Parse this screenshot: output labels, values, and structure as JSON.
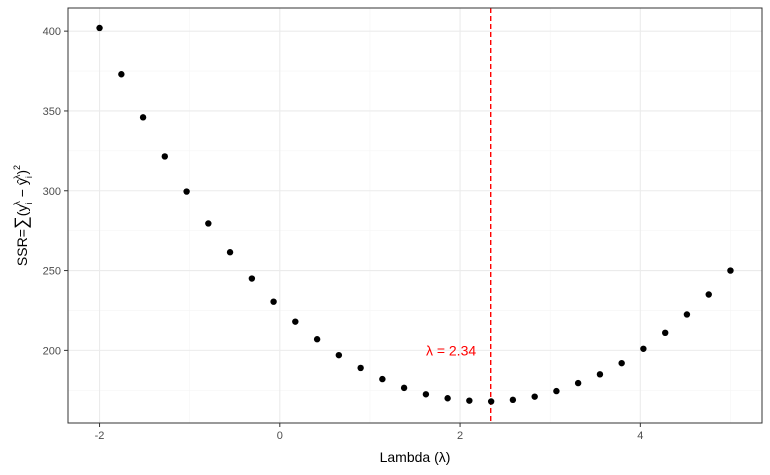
{
  "chart_data": {
    "type": "scatter",
    "xlabel": "Lambda (λ)",
    "ylabel_parts": {
      "prefix": "SSR=",
      "sigma": "∑",
      "open": "(",
      "y": "y",
      "i_sub": "i",
      "lambda_sup": "λ",
      "minus": " − ",
      "yhat": "ŷ",
      "close": ")",
      "square_sup": "2"
    },
    "xlim": [
      -2.35,
      5.35
    ],
    "ylim": [
      154.5,
      414.5
    ],
    "x_ticks": [
      -2,
      0,
      2,
      4
    ],
    "x_tick_labels": [
      "-2",
      "0",
      "2",
      "4"
    ],
    "y_ticks": [
      200,
      250,
      300,
      350,
      400
    ],
    "y_tick_labels": [
      "200",
      "250",
      "300",
      "350",
      "400"
    ],
    "grid": true,
    "points": [
      {
        "x": -2.0,
        "y": 402.0
      },
      {
        "x": -1.758,
        "y": 373.0
      },
      {
        "x": -1.517,
        "y": 346.0
      },
      {
        "x": -1.276,
        "y": 321.5
      },
      {
        "x": -1.034,
        "y": 299.5
      },
      {
        "x": -0.793,
        "y": 279.5
      },
      {
        "x": -0.552,
        "y": 261.5
      },
      {
        "x": -0.31,
        "y": 245.0
      },
      {
        "x": -0.069,
        "y": 230.5
      },
      {
        "x": 0.172,
        "y": 218.0
      },
      {
        "x": 0.414,
        "y": 207.0
      },
      {
        "x": 0.655,
        "y": 197.0
      },
      {
        "x": 0.897,
        "y": 189.0
      },
      {
        "x": 1.138,
        "y": 182.0
      },
      {
        "x": 1.379,
        "y": 176.5
      },
      {
        "x": 1.621,
        "y": 172.5
      },
      {
        "x": 1.862,
        "y": 170.0
      },
      {
        "x": 2.103,
        "y": 168.5
      },
      {
        "x": 2.345,
        "y": 168.0
      },
      {
        "x": 2.586,
        "y": 169.0
      },
      {
        "x": 2.828,
        "y": 171.0
      },
      {
        "x": 3.069,
        "y": 174.5
      },
      {
        "x": 3.31,
        "y": 179.5
      },
      {
        "x": 3.552,
        "y": 185.0
      },
      {
        "x": 3.793,
        "y": 192.0
      },
      {
        "x": 4.034,
        "y": 201.0
      },
      {
        "x": 4.276,
        "y": 211.0
      },
      {
        "x": 4.517,
        "y": 222.5
      },
      {
        "x": 4.759,
        "y": 235.0
      },
      {
        "x": 5.0,
        "y": 250.0
      }
    ],
    "vline": {
      "x": 2.34,
      "color": "#ff0000",
      "style": "dashed"
    },
    "annotation": {
      "text": "λ = 2.34",
      "x": 1.9,
      "y": 200,
      "color": "#ff0000"
    },
    "colors": {
      "points": "#000000",
      "panel_border": "#333333",
      "grid_major": "#ebebeb",
      "grid_minor": "#f5f5f5",
      "ticks": "#333333"
    }
  }
}
